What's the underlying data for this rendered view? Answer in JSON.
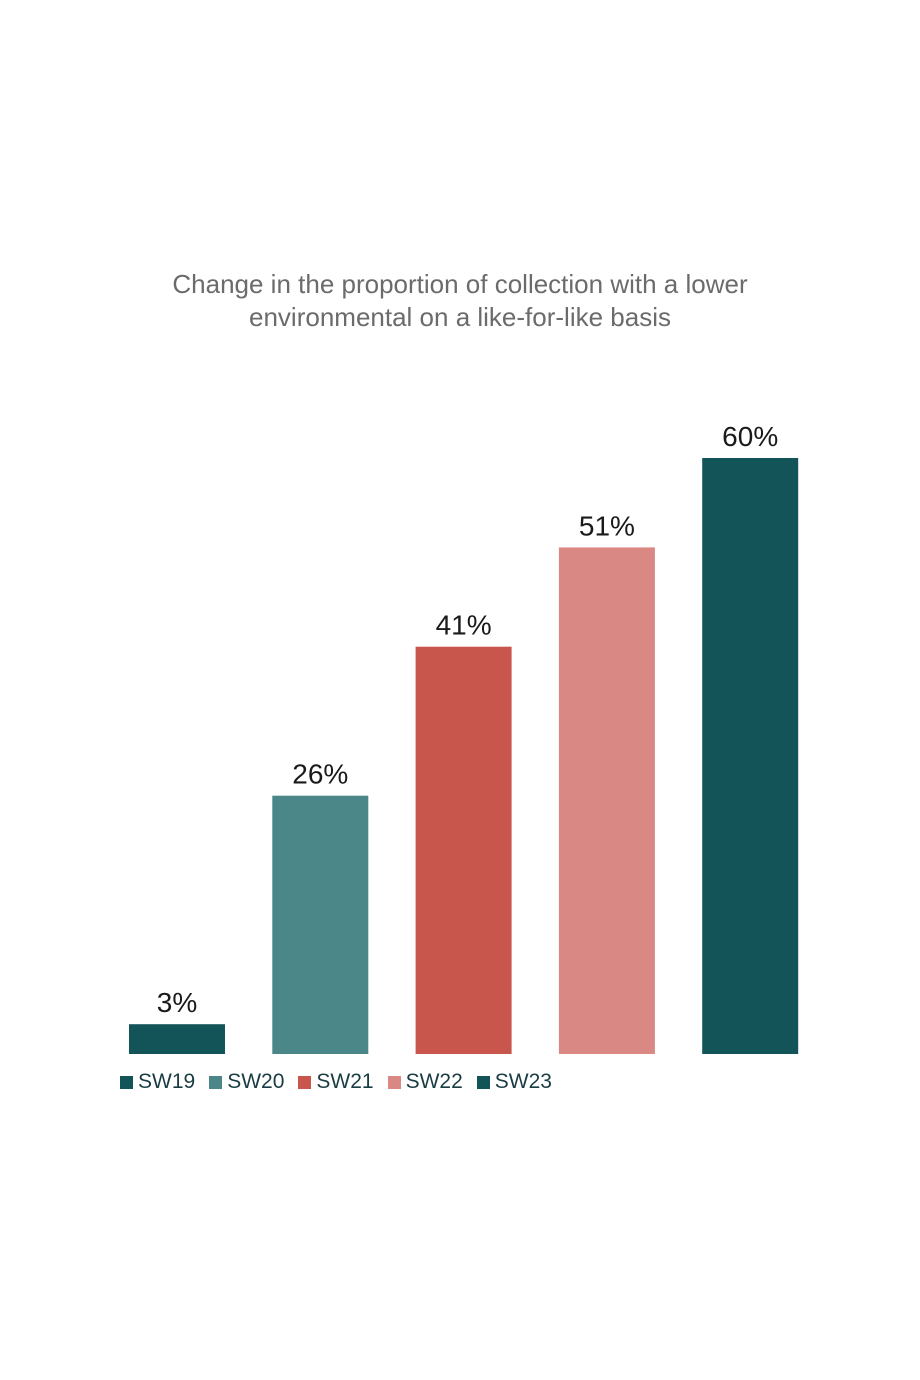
{
  "chart_data": {
    "type": "bar",
    "title_lines": [
      "Change in the proportion of collection with a lower",
      "environmental on a like-for-like basis"
    ],
    "categories": [
      "SW19",
      "SW20",
      "SW21",
      "SW22",
      "SW23"
    ],
    "values": [
      3,
      26,
      41,
      51,
      60
    ],
    "data_labels": [
      "3%",
      "26%",
      "41%",
      "51%",
      "60%"
    ],
    "colors": [
      "#135458",
      "#4b8688",
      "#c8564c",
      "#d98884",
      "#135458"
    ],
    "ylim": [
      0,
      60
    ],
    "grid": false,
    "legend_position": "bottom-left"
  }
}
